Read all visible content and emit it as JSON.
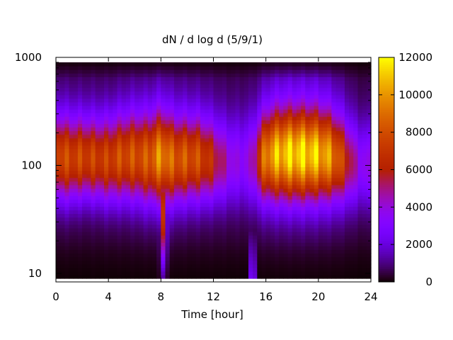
{
  "chart_data": {
    "type": "heatmap",
    "title": "dN / d log d (5/9/1)",
    "xlabel": "Time [hour]",
    "ylabel": "",
    "x": {
      "range": [
        0,
        24
      ],
      "ticks": [
        0,
        4,
        8,
        12,
        16,
        20,
        24
      ],
      "tick_labels": [
        "0",
        "4",
        "8",
        "12",
        "16",
        "20",
        "24"
      ]
    },
    "y": {
      "scale": "log",
      "range": [
        9,
        900
      ],
      "ticks": [
        10,
        100,
        1000
      ],
      "tick_labels": [
        "10",
        "100",
        "1000"
      ]
    },
    "colorbar": {
      "range": [
        0,
        12000
      ],
      "ticks": [
        0,
        2000,
        4000,
        6000,
        8000,
        10000,
        12000
      ],
      "tick_labels": [
        "0",
        "2000",
        "4000",
        "6000",
        "8000",
        "10000",
        "12000"
      ],
      "palette": "gnuplot black-purple-red-orange-yellow"
    },
    "grid": false,
    "legend": "colorbar-right",
    "time_hours": [
      0,
      1,
      2,
      3,
      4,
      5,
      6,
      7,
      8,
      9,
      10,
      11,
      12,
      13,
      14,
      15,
      16,
      17,
      18,
      19,
      20,
      21,
      22,
      23,
      24
    ],
    "peak_diameter": [
      120,
      115,
      118,
      115,
      112,
      118,
      120,
      115,
      120,
      112,
      115,
      115,
      110,
      105,
      105,
      108,
      120,
      125,
      125,
      125,
      125,
      120,
      110,
      100,
      100
    ],
    "peak_value": [
      7500,
      7000,
      7000,
      6800,
      6800,
      7200,
      7200,
      7400,
      8800,
      7500,
      7400,
      7000,
      5500,
      3500,
      2500,
      3200,
      8500,
      9500,
      10000,
      10000,
      9500,
      8500,
      6000,
      3200,
      2800
    ],
    "peak_width_decades": [
      0.26,
      0.26,
      0.25,
      0.25,
      0.26,
      0.26,
      0.27,
      0.28,
      0.28,
      0.27,
      0.26,
      0.26,
      0.25,
      0.25,
      0.25,
      0.26,
      0.27,
      0.28,
      0.28,
      0.28,
      0.28,
      0.27,
      0.26,
      0.25,
      0.25
    ],
    "background_value": [
      1600,
      1500,
      1500,
      1500,
      1500,
      1700,
      1800,
      1800,
      2200,
      1900,
      1800,
      1700,
      1600,
      1400,
      1400,
      1500,
      2400,
      2700,
      2800,
      2800,
      2700,
      2400,
      1800,
      1200,
      1100
    ],
    "events": [
      {
        "time_hour": 8.2,
        "note": "narrow intense plume extending from ~120 down to ~15",
        "value": 8500
      },
      {
        "time_hour": 15.0,
        "note": "brief small-diameter burst near lower edge",
        "value": 4500
      }
    ]
  }
}
